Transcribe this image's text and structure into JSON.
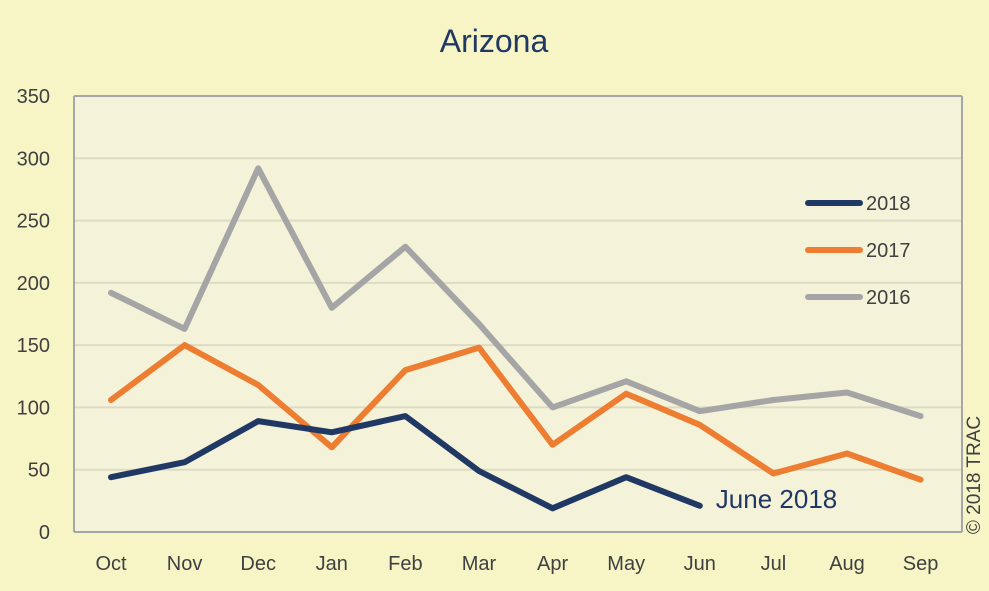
{
  "chart_data": {
    "type": "line",
    "title": "Arizona",
    "xlabel": "",
    "ylabel": "",
    "categories": [
      "Oct",
      "Nov",
      "Dec",
      "Jan",
      "Feb",
      "Mar",
      "Apr",
      "May",
      "Jun",
      "Jul",
      "Aug",
      "Sep"
    ],
    "ylim": [
      0,
      350
    ],
    "yticks": [
      0,
      50,
      100,
      150,
      200,
      250,
      300,
      350
    ],
    "grid": true,
    "legend_position": "right",
    "series": [
      {
        "name": "2018",
        "color": "#1f3864",
        "values": [
          44,
          56,
          89,
          80,
          93,
          49,
          19,
          44,
          21,
          null,
          null,
          null
        ]
      },
      {
        "name": "2017",
        "color": "#ed7d31",
        "values": [
          106,
          150,
          118,
          68,
          130,
          148,
          70,
          111,
          86,
          47,
          63,
          42
        ]
      },
      {
        "name": "2016",
        "color": "#a5a5a5",
        "values": [
          192,
          163,
          292,
          180,
          229,
          167,
          100,
          121,
          97,
          106,
          112,
          93
        ]
      }
    ],
    "annotations": [
      {
        "text": "June 2018",
        "series": "2018",
        "category": "Jun",
        "color": "#1f3864"
      }
    ],
    "colors": {
      "background": "#f7f4c6",
      "plot_background": "#f4f2d8",
      "grid": "#ffffff",
      "text": "#404040",
      "title": "#1f3864"
    }
  },
  "copyright": "© 2018 TRAC"
}
